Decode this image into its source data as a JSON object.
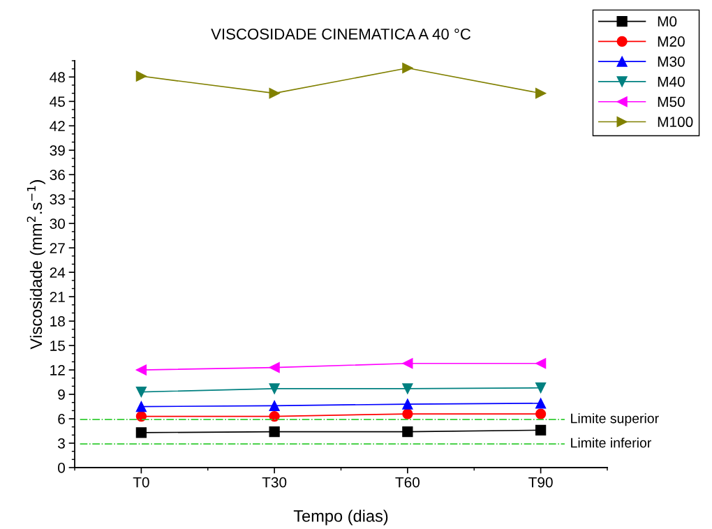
{
  "chart_data": {
    "type": "line",
    "title": "VISCOSIDADE CINEMATICA A 40 °C",
    "xlabel": "Tempo (dias)",
    "ylabel": "Viscosidade (mm$^{2}$.s$^{−1}$)",
    "categories": [
      "T0",
      "T30",
      "T60",
      "T90"
    ],
    "series": [
      {
        "name": "M0",
        "color": "#000000",
        "marker": "square",
        "values": [
          4.3,
          4.4,
          4.4,
          4.6
        ]
      },
      {
        "name": "M20",
        "color": "#ff0000",
        "marker": "circle",
        "values": [
          6.3,
          6.3,
          6.6,
          6.6
        ]
      },
      {
        "name": "M30",
        "color": "#0000ff",
        "marker": "triangle",
        "values": [
          7.5,
          7.6,
          7.8,
          7.9
        ]
      },
      {
        "name": "M40",
        "color": "#008080",
        "marker": "triangle-down",
        "values": [
          9.3,
          9.7,
          9.7,
          9.8
        ]
      },
      {
        "name": "M50",
        "color": "#ff00ff",
        "marker": "triangle-left",
        "values": [
          12.0,
          12.3,
          12.8,
          12.8
        ]
      },
      {
        "name": "M100",
        "color": "#808000",
        "marker": "triangle-right",
        "values": [
          48.1,
          46.0,
          49.1,
          46.0
        ]
      }
    ],
    "ylim": [
      0,
      50
    ],
    "yticks": [
      0,
      3,
      6,
      9,
      12,
      15,
      18,
      21,
      24,
      27,
      30,
      33,
      36,
      39,
      42,
      45,
      48
    ],
    "ref_lines": [
      {
        "axis": "y",
        "value": 5.9,
        "label": "Limite superior",
        "color": "#33cc33",
        "line_style": "dashdot"
      },
      {
        "axis": "y",
        "value": 2.9,
        "label": "Limite inferior",
        "color": "#33cc33",
        "line_style": "dashdot"
      }
    ],
    "legend": "top right",
    "grid": false,
    "line_style": "solid"
  }
}
